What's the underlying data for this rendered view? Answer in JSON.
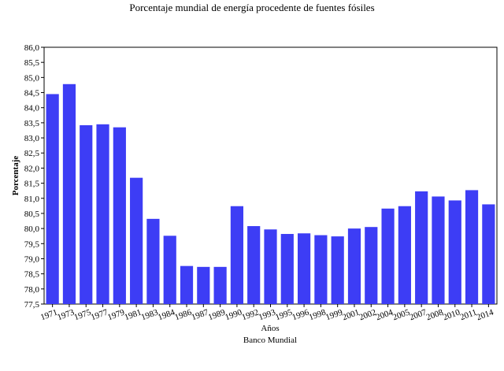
{
  "chart_data": {
    "type": "bar",
    "title": "Porcentaje mundial de energía procedente de fuentes fósiles",
    "xlabel": "Años",
    "ylabel": "Porcentaje",
    "source": "Banco Mundial",
    "ylim": [
      77.5,
      86.0
    ],
    "y_ticks": [
      "77,5",
      "78,0",
      "78,5",
      "79,0",
      "79,5",
      "80,0",
      "80,5",
      "81,0",
      "81,5",
      "82,0",
      "82,5",
      "83,0",
      "83,5",
      "84,0",
      "84,5",
      "85,0",
      "85,5",
      "86,0"
    ],
    "bar_color": "#3d3df5",
    "legend": "none",
    "grid": false,
    "series_count": 27,
    "categories_shown": [
      "1971",
      "1973",
      "1975",
      "1977",
      "1979",
      "1981",
      "1983",
      "1984",
      "1986",
      "1987",
      "1989",
      "1990",
      "1992",
      "1993",
      "1995",
      "1996",
      "1998",
      "1999",
      "2001",
      "2002",
      "2004",
      "2005",
      "2007",
      "2008",
      "2010",
      "2011",
      "2014"
    ],
    "values": [
      84.45,
      84.78,
      83.42,
      83.45,
      83.35,
      81.68,
      80.32,
      79.76,
      78.76,
      78.73,
      78.73,
      80.74,
      80.08,
      79.97,
      79.82,
      79.84,
      79.78,
      79.74,
      80.0,
      80.05,
      80.66,
      80.74,
      81.23,
      81.06,
      80.93,
      81.27,
      80.8
    ]
  }
}
